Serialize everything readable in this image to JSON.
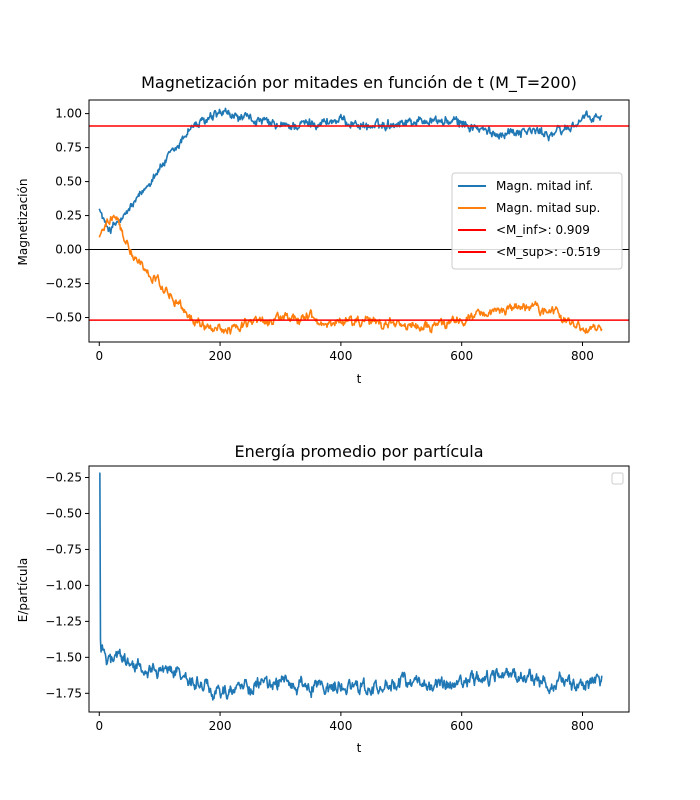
{
  "colors": {
    "blue": "#1f77b4",
    "orange": "#ff7f0e",
    "red": "#ff0000",
    "black": "#000000",
    "legend_border": "#cccccc"
  },
  "chart_data": [
    {
      "type": "line",
      "title": "Magnetización por mitades en función de t (M_T=200)",
      "xlabel": "t",
      "ylabel": "Magnetización",
      "xlim": [
        -17,
        877
      ],
      "ylim": [
        -0.68,
        1.1
      ],
      "xticks": [
        0,
        200,
        400,
        600,
        800
      ],
      "xtick_labels": [
        "0",
        "200",
        "400",
        "600",
        "800"
      ],
      "yticks": [
        -0.5,
        -0.25,
        0.0,
        0.25,
        0.5,
        0.75,
        1.0
      ],
      "ytick_labels": [
        "−0.50",
        "−0.25",
        "0.00",
        "0.25",
        "0.50",
        "0.75",
        "1.00"
      ],
      "grid": false,
      "legend_position": "center-right",
      "series": [
        {
          "name": "Magn. mitad inf.",
          "color": "#1f77b4",
          "keypoints": [
            [
              0,
              0.3
            ],
            [
              10,
              0.18
            ],
            [
              20,
              0.15
            ],
            [
              30,
              0.2
            ],
            [
              40,
              0.22
            ],
            [
              50,
              0.3
            ],
            [
              70,
              0.4
            ],
            [
              90,
              0.55
            ],
            [
              110,
              0.65
            ],
            [
              130,
              0.75
            ],
            [
              150,
              0.9
            ],
            [
              170,
              0.93
            ],
            [
              190,
              0.97
            ],
            [
              200,
              1.0
            ],
            [
              230,
              0.97
            ],
            [
              260,
              0.95
            ],
            [
              300,
              0.9
            ],
            [
              350,
              0.93
            ],
            [
              400,
              0.95
            ],
            [
              450,
              0.9
            ],
            [
              500,
              0.94
            ],
            [
              550,
              0.95
            ],
            [
              600,
              0.93
            ],
            [
              650,
              0.85
            ],
            [
              700,
              0.88
            ],
            [
              750,
              0.85
            ],
            [
              780,
              0.9
            ],
            [
              800,
              0.96
            ],
            [
              832,
              0.97
            ]
          ],
          "noise": 0.03
        },
        {
          "name": "Magn. mitad sup.",
          "color": "#ff7f0e",
          "keypoints": [
            [
              0,
              0.09
            ],
            [
              10,
              0.2
            ],
            [
              20,
              0.25
            ],
            [
              30,
              0.22
            ],
            [
              40,
              0.12
            ],
            [
              60,
              -0.05
            ],
            [
              80,
              -0.18
            ],
            [
              100,
              -0.25
            ],
            [
              120,
              -0.35
            ],
            [
              140,
              -0.45
            ],
            [
              160,
              -0.53
            ],
            [
              180,
              -0.58
            ],
            [
              200,
              -0.6
            ],
            [
              250,
              -0.55
            ],
            [
              300,
              -0.52
            ],
            [
              350,
              -0.5
            ],
            [
              400,
              -0.55
            ],
            [
              450,
              -0.52
            ],
            [
              500,
              -0.55
            ],
            [
              550,
              -0.57
            ],
            [
              600,
              -0.52
            ],
            [
              650,
              -0.45
            ],
            [
              700,
              -0.42
            ],
            [
              750,
              -0.45
            ],
            [
              780,
              -0.55
            ],
            [
              810,
              -0.57
            ],
            [
              832,
              -0.57
            ]
          ],
          "noise": 0.03
        },
        {
          "name": "<M_inf>: 0.909",
          "color": "#ff0000",
          "hline": 0.909
        },
        {
          "name": "<M_sup>: -0.519",
          "color": "#ff0000",
          "hline": -0.519
        }
      ],
      "zero_line": 0.0
    },
    {
      "type": "line",
      "title": "Energía promedio por partícula",
      "xlabel": "t",
      "ylabel": "E/partícula",
      "xlim": [
        -17,
        877
      ],
      "ylim": [
        -1.88,
        -0.17
      ],
      "xticks": [
        0,
        200,
        400,
        600,
        800
      ],
      "xtick_labels": [
        "0",
        "200",
        "400",
        "600",
        "800"
      ],
      "yticks": [
        -1.75,
        -1.5,
        -1.25,
        -1.0,
        -0.75,
        -0.5,
        -0.25
      ],
      "ytick_labels": [
        "−1.75",
        "−1.50",
        "−1.25",
        "−1.00",
        "−0.75",
        "−0.50",
        "−0.25"
      ],
      "grid": false,
      "legend_position": "top-right",
      "legend_empty": true,
      "series": [
        {
          "color": "#1f77b4",
          "keypoints": [
            [
              0,
              -0.22
            ],
            [
              1,
              -0.22
            ],
            [
              2,
              -1.38
            ],
            [
              5,
              -1.45
            ],
            [
              10,
              -1.52
            ],
            [
              30,
              -1.5
            ],
            [
              60,
              -1.55
            ],
            [
              100,
              -1.6
            ],
            [
              150,
              -1.65
            ],
            [
              200,
              -1.75
            ],
            [
              250,
              -1.7
            ],
            [
              300,
              -1.68
            ],
            [
              350,
              -1.7
            ],
            [
              400,
              -1.7
            ],
            [
              450,
              -1.72
            ],
            [
              500,
              -1.68
            ],
            [
              550,
              -1.7
            ],
            [
              600,
              -1.65
            ],
            [
              650,
              -1.64
            ],
            [
              700,
              -1.62
            ],
            [
              750,
              -1.68
            ],
            [
              800,
              -1.7
            ],
            [
              832,
              -1.67
            ]
          ],
          "noise": 0.04
        }
      ]
    }
  ]
}
